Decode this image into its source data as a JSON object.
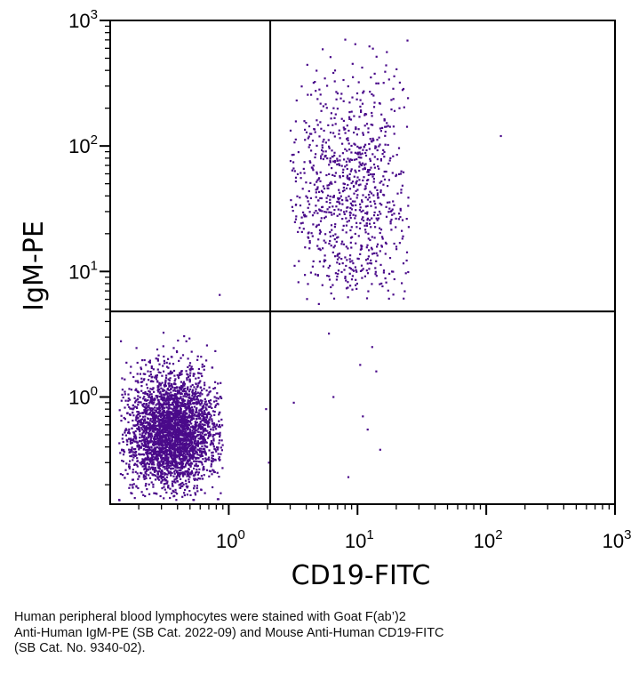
{
  "chart_data": {
    "type": "scatter",
    "title": "",
    "xlabel": "CD19-FITC",
    "ylabel": "IgM-PE",
    "xscale": "log",
    "yscale": "log",
    "xlim": [
      0.12,
      1000
    ],
    "ylim": [
      0.14,
      1000
    ],
    "x_tick_values": [
      1,
      10,
      100,
      1000
    ],
    "x_tick_labels": [
      "10^0",
      "10^1",
      "10^2",
      "10^3"
    ],
    "y_tick_values": [
      1,
      10,
      100,
      1000
    ],
    "y_tick_labels": [
      "10^0",
      "10^1",
      "10^2",
      "10^3"
    ],
    "grid": false,
    "legend": "none",
    "point_color": "#4a0a8a",
    "quadrant_gates": {
      "x": 2.1,
      "y": 4.8
    },
    "populations": [
      {
        "name": "",
        "description": "IgM-negative CD19-negative cluster",
        "x_center": 0.37,
        "y_center": 0.52,
        "x_range": [
          0.14,
          0.9
        ],
        "y_range": [
          0.15,
          4.2
        ],
        "approx_count": 3200
      },
      {
        "name": "",
        "description": "IgM-positive CD19-positive cluster",
        "x_center": 9.0,
        "y_center": 45,
        "x_range": [
          3.0,
          25
        ],
        "y_range": [
          5.5,
          1000
        ],
        "approx_count": 900
      }
    ],
    "outliers": [
      {
        "x": 0.85,
        "y": 6.5
      },
      {
        "x": 130,
        "y": 120
      },
      {
        "x": 1.95,
        "y": 0.8
      },
      {
        "x": 2.05,
        "y": 0.3
      },
      {
        "x": 3.2,
        "y": 0.9
      },
      {
        "x": 6.5,
        "y": 1.0
      },
      {
        "x": 8.5,
        "y": 0.23
      },
      {
        "x": 15,
        "y": 0.38
      },
      {
        "x": 12,
        "y": 0.55
      },
      {
        "x": 10.5,
        "y": 1.8
      },
      {
        "x": 13,
        "y": 2.5
      },
      {
        "x": 6.0,
        "y": 3.2
      },
      {
        "x": 11,
        "y": 0.7
      },
      {
        "x": 14,
        "y": 1.6
      }
    ]
  },
  "caption": {
    "lines": [
      "Human peripheral blood lymphocytes were stained with Goat F(ab’)2",
      "Anti-Human IgM-PE (SB Cat. 2022-09) and Mouse Anti-Human CD19-FITC",
      "(SB Cat. No. 9340-02)."
    ]
  }
}
